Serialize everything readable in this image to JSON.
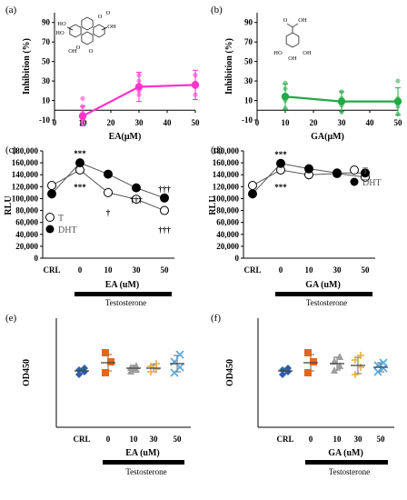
{
  "figure": {
    "panels": [
      {
        "id": "a",
        "label": "(a)",
        "structure": "ellagic-acid-structure",
        "structure_labels": [
          "HO",
          "O",
          "O",
          "OH",
          "OH",
          "HO",
          "O",
          "O"
        ]
      },
      {
        "id": "b",
        "label": "(b)",
        "structure": "gallic-acid-structure",
        "structure_labels": [
          "O",
          "OH",
          "HO",
          "OH",
          "OH"
        ]
      },
      {
        "id": "c",
        "label": "(c)",
        "bar_label": "Testosterone"
      },
      {
        "id": "d",
        "label": "(d)",
        "bar_label": "Testosterone"
      },
      {
        "id": "e",
        "label": "(e)",
        "bar_label": "Testosterone"
      },
      {
        "id": "f",
        "label": "(f)",
        "bar_label": "Testosterone"
      }
    ]
  },
  "chart_data": [
    {
      "panel": "a",
      "type": "line",
      "xlabel": "EA(μM)",
      "ylabel": "Inhibition (%)",
      "x": [
        10,
        30,
        50
      ],
      "xticks": [
        0,
        10,
        20,
        30,
        40,
        50
      ],
      "ylim": [
        -10,
        100
      ],
      "yticks": [
        -10,
        10,
        30,
        50,
        70,
        90
      ],
      "color": "#ff33cc",
      "series": [
        {
          "values": [
            -6,
            24,
            26
          ],
          "errors": [
            10,
            15,
            15
          ]
        }
      ],
      "replicates": [
        {
          "x": 10,
          "values": [
            -12,
            -3,
            4,
            12
          ]
        },
        {
          "x": 30,
          "values": [
            16,
            20,
            30,
            36
          ]
        },
        {
          "x": 50,
          "values": [
            16,
            24,
            28,
            36
          ]
        }
      ]
    },
    {
      "panel": "b",
      "type": "line",
      "xlabel": "GA(μM)",
      "ylabel": "Inhibition (%)",
      "x": [
        10,
        30,
        50
      ],
      "xticks": [
        0,
        10,
        20,
        30,
        40,
        50
      ],
      "ylim": [
        -10,
        100
      ],
      "yticks": [
        -10,
        10,
        30,
        50,
        70,
        90
      ],
      "color": "#22aa44",
      "series": [
        {
          "values": [
            14,
            9,
            9
          ],
          "errors": [
            13,
            10,
            14
          ]
        }
      ],
      "replicates": [
        {
          "x": 10,
          "values": [
            2,
            10,
            14,
            22,
            28
          ]
        },
        {
          "x": 30,
          "values": [
            -2,
            5,
            12,
            19
          ]
        },
        {
          "x": 50,
          "values": [
            -4,
            4,
            12,
            30
          ]
        }
      ]
    },
    {
      "panel": "c",
      "type": "line",
      "xlabel": "EA (uM)",
      "ylabel": "RLU",
      "categories": [
        "CRL",
        "0",
        "10",
        "30",
        "50"
      ],
      "ylim": [
        0,
        180000
      ],
      "yticks": [
        "0",
        "20,000",
        "40,000",
        "60,000",
        "80,000",
        "100,000",
        "120,000",
        "140,000",
        "160,000",
        "180,000"
      ],
      "series": [
        {
          "name": "T",
          "marker": "open",
          "values": [
            122000,
            148000,
            110000,
            99000,
            80000
          ],
          "errors": [
            4000,
            5000,
            8000,
            6000,
            5000
          ]
        },
        {
          "name": "DHT",
          "marker": "filled",
          "values": [
            108000,
            160000,
            141000,
            118000,
            101000
          ],
          "errors": [
            8000,
            4000,
            4000,
            5000,
            5000
          ]
        }
      ],
      "annotations": [
        "***",
        "***",
        "†",
        "†††",
        "†††",
        "†††"
      ]
    },
    {
      "panel": "d",
      "type": "line",
      "xlabel": "GA (uM)",
      "ylabel": "RLU",
      "categories": [
        "CRL",
        "0",
        "10",
        "30",
        "50"
      ],
      "ylim": [
        0,
        180000
      ],
      "yticks": [
        "0",
        "20,000",
        "40,000",
        "60,000",
        "80,000",
        "100,000",
        "120,000",
        "140,000",
        "160,000",
        "180,000"
      ],
      "series": [
        {
          "name": "T",
          "marker": "open",
          "values": [
            122000,
            148000,
            140000,
            142000,
            136000
          ],
          "errors": [
            4000,
            5000,
            4000,
            4000,
            6000
          ]
        },
        {
          "name": "DHT",
          "marker": "filled",
          "values": [
            108000,
            159000,
            150000,
            143000,
            143000
          ],
          "errors": [
            8000,
            4000,
            4000,
            4000,
            4000
          ]
        }
      ],
      "annotations": [
        "***",
        "***"
      ]
    },
    {
      "panel": "e",
      "type": "scatter",
      "xlabel": "EA (uM)",
      "ylabel": "OD450",
      "categories": [
        "CRL",
        "0",
        "10",
        "30",
        "50"
      ],
      "ylim": [
        0,
        1.2
      ],
      "groups": [
        {
          "mean": 0.62,
          "sd": 0.03,
          "points": [
            0.58,
            0.61,
            0.63,
            0.65
          ],
          "color": "#2e5fa8",
          "shape": "diamond"
        },
        {
          "mean": 0.71,
          "sd": 0.09,
          "points": [
            0.6,
            0.72,
            0.82
          ],
          "color": "#e0681c",
          "shape": "square"
        },
        {
          "mean": 0.65,
          "sd": 0.03,
          "points": [
            0.62,
            0.64,
            0.66,
            0.68
          ],
          "color": "#9e9e9e",
          "shape": "triangle"
        },
        {
          "mean": 0.65,
          "sd": 0.04,
          "points": [
            0.61,
            0.64,
            0.67,
            0.7
          ],
          "color": "#e6b04a",
          "shape": "cross"
        },
        {
          "mean": 0.7,
          "sd": 0.09,
          "points": [
            0.6,
            0.66,
            0.72,
            0.8
          ],
          "color": "#5aa6d6",
          "shape": "x"
        }
      ]
    },
    {
      "panel": "f",
      "type": "scatter",
      "xlabel": "GA (uM)",
      "ylabel": "OD450",
      "categories": [
        "CRL",
        "0",
        "10",
        "30",
        "50"
      ],
      "ylim": [
        0,
        1.2
      ],
      "groups": [
        {
          "mean": 0.62,
          "sd": 0.03,
          "points": [
            0.58,
            0.61,
            0.63,
            0.65
          ],
          "color": "#2e5fa8",
          "shape": "diamond"
        },
        {
          "mean": 0.71,
          "sd": 0.09,
          "points": [
            0.6,
            0.72,
            0.82
          ],
          "color": "#e0681c",
          "shape": "square"
        },
        {
          "mean": 0.7,
          "sd": 0.07,
          "points": [
            0.63,
            0.68,
            0.73,
            0.78
          ],
          "color": "#9e9e9e",
          "shape": "triangle"
        },
        {
          "mean": 0.68,
          "sd": 0.09,
          "points": [
            0.58,
            0.66,
            0.74,
            0.79
          ],
          "color": "#e6b04a",
          "shape": "cross"
        },
        {
          "mean": 0.66,
          "sd": 0.05,
          "points": [
            0.61,
            0.65,
            0.68,
            0.71
          ],
          "color": "#5aa6d6",
          "shape": "x"
        }
      ]
    }
  ]
}
